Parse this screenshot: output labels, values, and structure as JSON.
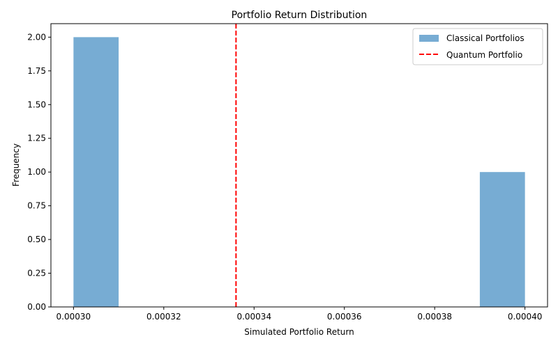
{
  "chart_data": {
    "type": "bar",
    "title": "Portfolio Return Distribution",
    "xlabel": "Simulated Portfolio Return",
    "ylabel": "Frequency",
    "xlim": [
      0.000295,
      0.000405
    ],
    "ylim": [
      0,
      2.1
    ],
    "x_ticks": [
      0.0003,
      0.00032,
      0.00034,
      0.00036,
      0.00038,
      0.0004
    ],
    "x_tick_labels": [
      "0.00030",
      "0.00032",
      "0.00034",
      "0.00036",
      "0.00038",
      "0.00040"
    ],
    "y_ticks": [
      0,
      0.25,
      0.5,
      0.75,
      1.0,
      1.25,
      1.5,
      1.75,
      2.0
    ],
    "y_tick_labels": [
      "0.00",
      "0.25",
      "0.50",
      "0.75",
      "1.00",
      "1.25",
      "1.50",
      "1.75",
      "2.00"
    ],
    "grid": false,
    "legend_position": "top-right",
    "bars": [
      {
        "x0": 0.0003,
        "x1": 0.00031,
        "value": 2
      },
      {
        "x0": 0.00039,
        "x1": 0.0004,
        "value": 1
      }
    ],
    "series": [
      {
        "name": "Classical Portfolios",
        "kind": "histogram",
        "color": "#77acd3"
      },
      {
        "name": "Quantum Portfolio",
        "kind": "vline",
        "x": 0.000336,
        "color": "#ff0000"
      }
    ]
  }
}
